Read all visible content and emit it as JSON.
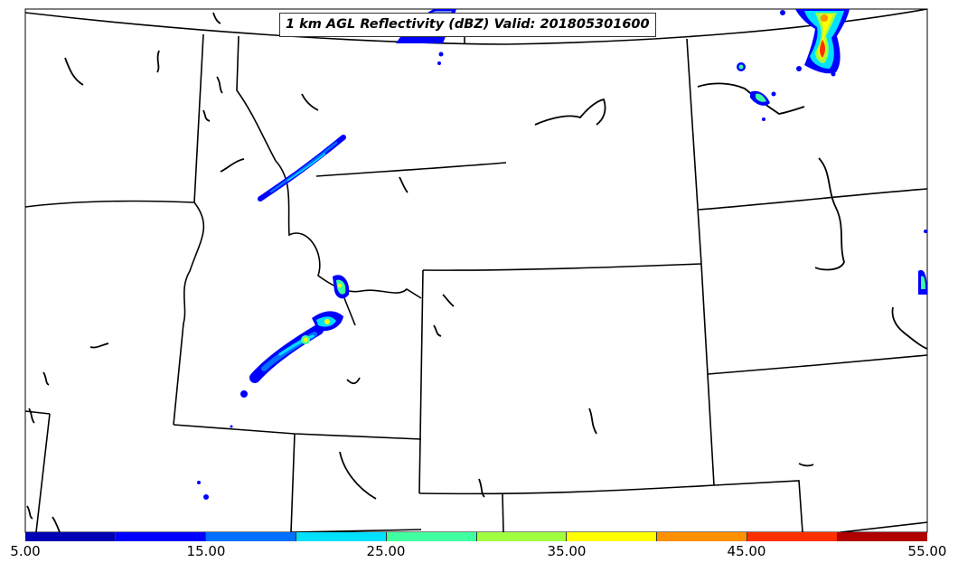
{
  "title": "1 km AGL Reflectivity (dBZ) Valid: 201805301600",
  "colorbar": {
    "tick_labels": [
      "5.00",
      "15.00",
      "25.00",
      "35.00",
      "45.00",
      "55.00"
    ],
    "colors": [
      "#0000b4",
      "#0000ff",
      "#0070ff",
      "#00e0ff",
      "#40ffa0",
      "#a0ff40",
      "#ffff00",
      "#ff9000",
      "#ff3000",
      "#b00000"
    ]
  },
  "map": {
    "boundary_color": "#000000",
    "water_color": "#000000"
  }
}
